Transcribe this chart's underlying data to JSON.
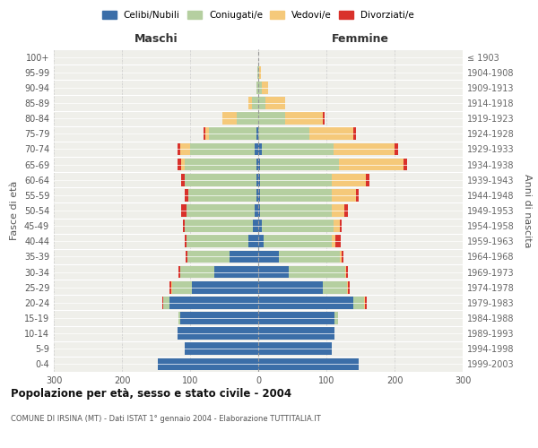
{
  "age_groups": [
    "0-4",
    "5-9",
    "10-14",
    "15-19",
    "20-24",
    "25-29",
    "30-34",
    "35-39",
    "40-44",
    "45-49",
    "50-54",
    "55-59",
    "60-64",
    "65-69",
    "70-74",
    "75-79",
    "80-84",
    "85-89",
    "90-94",
    "95-99",
    "100+"
  ],
  "birth_years": [
    "1999-2003",
    "1994-1998",
    "1989-1993",
    "1984-1988",
    "1979-1983",
    "1974-1978",
    "1969-1973",
    "1964-1968",
    "1959-1963",
    "1954-1958",
    "1949-1953",
    "1944-1948",
    "1939-1943",
    "1934-1938",
    "1929-1933",
    "1924-1928",
    "1919-1923",
    "1914-1918",
    "1909-1913",
    "1904-1908",
    "≤ 1903"
  ],
  "males_celibi": [
    148,
    108,
    118,
    115,
    130,
    98,
    65,
    42,
    15,
    8,
    5,
    3,
    3,
    3,
    5,
    2,
    0,
    0,
    0,
    0,
    0
  ],
  "males_coniugati": [
    0,
    0,
    0,
    2,
    10,
    28,
    50,
    62,
    90,
    100,
    100,
    100,
    105,
    105,
    95,
    70,
    32,
    9,
    3,
    1,
    0
  ],
  "males_vedovi": [
    0,
    0,
    0,
    0,
    0,
    2,
    0,
    0,
    0,
    0,
    0,
    0,
    0,
    5,
    15,
    5,
    20,
    5,
    0,
    0,
    0
  ],
  "males_divorziati": [
    0,
    0,
    0,
    0,
    1,
    2,
    2,
    2,
    3,
    3,
    8,
    5,
    5,
    5,
    3,
    3,
    0,
    0,
    0,
    0,
    0
  ],
  "females_nubili": [
    148,
    108,
    112,
    112,
    140,
    95,
    45,
    30,
    8,
    5,
    3,
    3,
    3,
    3,
    5,
    0,
    0,
    0,
    0,
    0,
    0
  ],
  "females_coniugate": [
    0,
    0,
    0,
    5,
    15,
    35,
    82,
    90,
    100,
    105,
    105,
    105,
    105,
    115,
    105,
    75,
    40,
    10,
    5,
    1,
    0
  ],
  "females_vedove": [
    0,
    0,
    0,
    0,
    2,
    2,
    2,
    2,
    5,
    10,
    18,
    35,
    50,
    95,
    90,
    65,
    55,
    30,
    10,
    3,
    0
  ],
  "females_divorziate": [
    0,
    0,
    0,
    0,
    2,
    2,
    2,
    3,
    8,
    3,
    5,
    5,
    5,
    5,
    5,
    3,
    3,
    0,
    0,
    0,
    0
  ],
  "colors": {
    "celibi": "#3b6ea8",
    "coniugati": "#b5cfa0",
    "vedovi": "#f5c97a",
    "divorziati": "#d9312b"
  },
  "xlim": 300,
  "title": "Popolazione per età, sesso e stato civile - 2004",
  "subtitle": "COMUNE DI IRSINA (MT) - Dati ISTAT 1° gennaio 2004 - Elaborazione TUTTITALIA.IT",
  "ylabel_left": "Fasce di età",
  "ylabel_right": "Anni di nascita",
  "xlabel_left": "Maschi",
  "xlabel_right": "Femmine",
  "bg_color": "#efefea",
  "grid_color": "#cccccc"
}
